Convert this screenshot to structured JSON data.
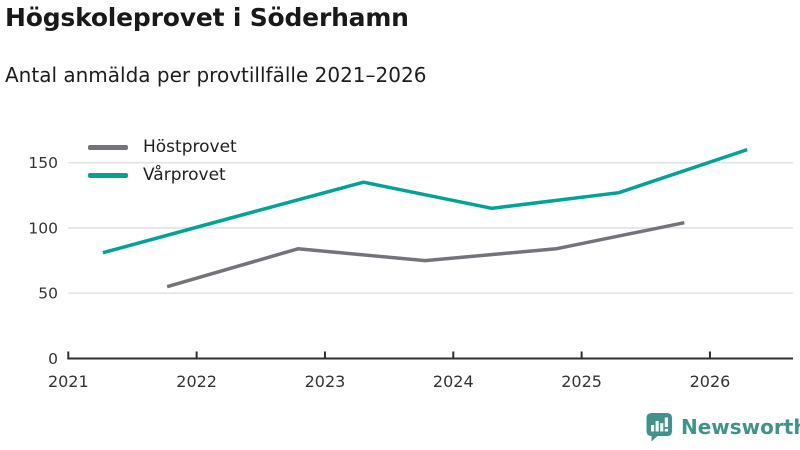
{
  "header": {
    "title": "Högskoleprovet i Söderhamn",
    "subtitle": "Antal anmälda per provtillfälle 2021–2026"
  },
  "chart_data": {
    "type": "line",
    "title": "Högskoleprovet i Söderhamn",
    "subtitle": "Antal anmälda per provtillfälle 2021–2026",
    "xlabel": "",
    "ylabel": "",
    "x_ticks": [
      2021,
      2022,
      2023,
      2024,
      2025,
      2026
    ],
    "y_ticks": [
      0,
      50,
      100,
      150
    ],
    "xlim": [
      2021,
      2026.65
    ],
    "ylim": [
      0,
      165
    ],
    "grid": "horizontal",
    "legend_position": "top-left",
    "series": [
      {
        "name": "Höstprovet",
        "color": "#74737b",
        "x": [
          2021.77,
          2022.79,
          2023.78,
          2024.8,
          2025.8
        ],
        "values": [
          55,
          84,
          75,
          84,
          104
        ]
      },
      {
        "name": "Vårprovet",
        "color": "#00a396",
        "x": [
          2021.27,
          2022.28,
          2023.3,
          2024.3,
          2025.29,
          2026.29
        ],
        "values": [
          81,
          108,
          135,
          115,
          127,
          160
        ]
      }
    ],
    "colors": {
      "gridline": "#e3e3e3",
      "axis": "#2f2f2f",
      "tick_label": "#333333"
    }
  },
  "footer": {
    "brand": "Newsworthy",
    "brand_color": "#3e938a",
    "logo_icon": "bar-chart-speech-bubble-icon"
  }
}
